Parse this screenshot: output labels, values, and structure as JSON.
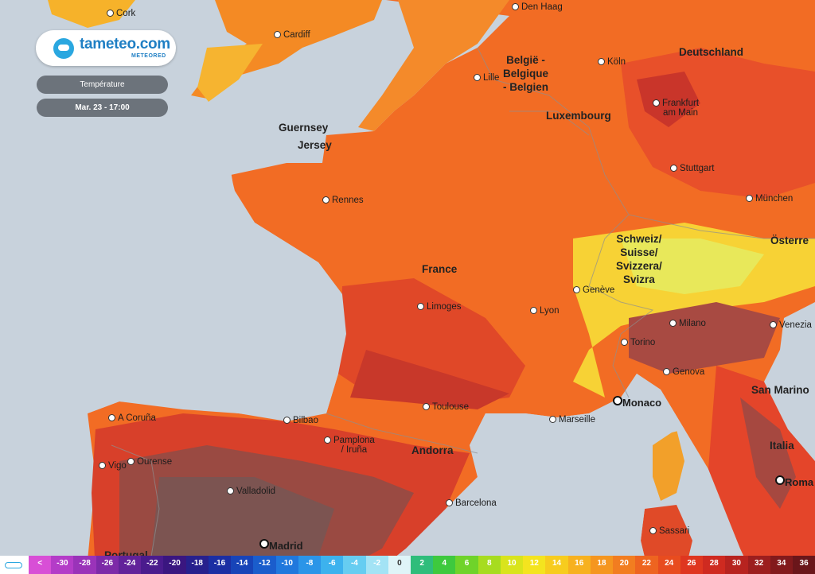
{
  "brand": {
    "name": "tameteo.com",
    "sub": "METEORED"
  },
  "controls": {
    "variable": "Température",
    "datetime": "Mar. 23 - 17:00"
  },
  "map_labels": {
    "cities": [
      {
        "name": "Cork"
      },
      {
        "name": "Cardiff"
      },
      {
        "name": "Den Haag"
      },
      {
        "name": "Lille"
      },
      {
        "name": "Köln"
      },
      {
        "name": "Frankfurt\nam Main"
      },
      {
        "name": "Stuttgart"
      },
      {
        "name": "München"
      },
      {
        "name": "Rennes"
      },
      {
        "name": "Limoges"
      },
      {
        "name": "Lyon"
      },
      {
        "name": "Genève"
      },
      {
        "name": "Milano"
      },
      {
        "name": "Venezia"
      },
      {
        "name": "Torino"
      },
      {
        "name": "Genova"
      },
      {
        "name": "Toulouse"
      },
      {
        "name": "Marseille"
      },
      {
        "name": "Bilbao"
      },
      {
        "name": "Pamplona\n/ Iruña"
      },
      {
        "name": "A Coruña"
      },
      {
        "name": "Vigo"
      },
      {
        "name": "Ourense"
      },
      {
        "name": "Valladolid"
      },
      {
        "name": "Barcelona"
      },
      {
        "name": "Sassari"
      }
    ],
    "capitals": [
      {
        "name": "Monaco"
      },
      {
        "name": "Roma"
      },
      {
        "name": "Madrid"
      }
    ],
    "countries": [
      {
        "name": "Deutschland"
      },
      {
        "name": "België -\nBelgique\n- Belgien"
      },
      {
        "name": "Luxembourg"
      },
      {
        "name": "Guernsey"
      },
      {
        "name": "Jersey"
      },
      {
        "name": "France"
      },
      {
        "name": "Schweiz/\nSuisse/\nSvizzera/\nSvizra"
      },
      {
        "name": "Österre"
      },
      {
        "name": "San Marino"
      },
      {
        "name": "Italia"
      },
      {
        "name": "Andorra"
      },
      {
        "name": "Portugal"
      }
    ]
  },
  "legend": {
    "labels": [
      "<",
      "-30",
      "-28",
      "-26",
      "-24",
      "-22",
      "-20",
      "-18",
      "-16",
      "-14",
      "-12",
      "-10",
      "-8",
      "-6",
      "-4",
      "-2",
      "0",
      "2",
      "4",
      "6",
      "8",
      "10",
      "12",
      "14",
      "16",
      "18",
      "20",
      "22",
      "24",
      "26",
      "28",
      "30",
      "32",
      "34",
      "36"
    ],
    "colors": [
      "#d84fd6",
      "#b43cc8",
      "#9a33b9",
      "#7d2aa8",
      "#62229a",
      "#4a1b8d",
      "#3a1680",
      "#27208d",
      "#1b2ea3",
      "#1744b8",
      "#1a5dcc",
      "#2078dd",
      "#2b95e8",
      "#3cb2ee",
      "#66cdf1",
      "#a3e3f5",
      "#dff4f8",
      "#2fbd7b",
      "#3ec93e",
      "#6fd32a",
      "#a7dc1f",
      "#d9e41c",
      "#f4e41f",
      "#f7cc1e",
      "#f7b11f",
      "#f5961f",
      "#f27d20",
      "#ee6420",
      "#e84c1f",
      "#df3620",
      "#cf2a20",
      "#b7231f",
      "#9c1e1e",
      "#821a1c",
      "#6a161a"
    ]
  }
}
